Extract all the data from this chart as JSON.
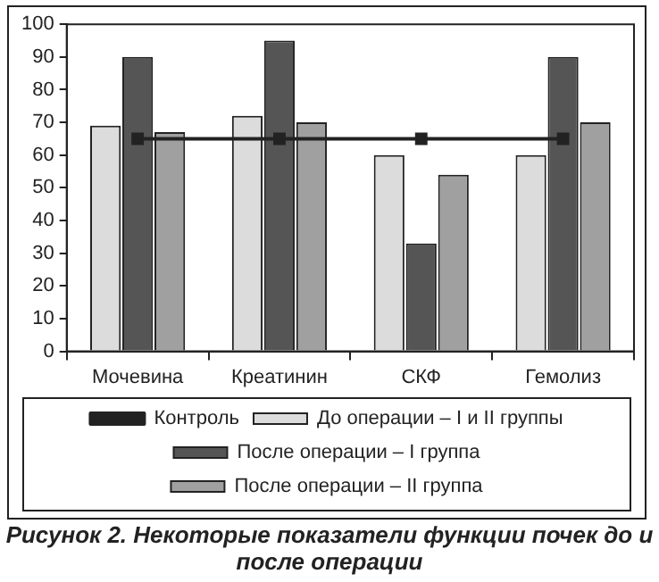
{
  "chart_data": {
    "type": "bar",
    "title": "Рисунок 2. Некоторые показатели функции почек до и после операции",
    "categories": [
      "Мочевина",
      "Креатинин",
      "СКФ",
      "Гемолиз"
    ],
    "series": [
      {
        "name": "До операции – I и II группы",
        "color": "#dcdcdc",
        "values": [
          69,
          72,
          60,
          60
        ]
      },
      {
        "name": "После операции – I группа",
        "color": "#555555",
        "values": [
          90,
          95,
          33,
          90
        ]
      },
      {
        "name": "После операции – II группа",
        "color": "#a0a0a0",
        "values": [
          67,
          70,
          54,
          70
        ]
      },
      {
        "name": "Контроль",
        "type": "line",
        "color": "#222222",
        "values": [
          65,
          65,
          65,
          65
        ],
        "marker": "square"
      }
    ],
    "ylim": [
      0,
      100
    ],
    "yticks": [
      0,
      10,
      20,
      30,
      40,
      50,
      60,
      70,
      80,
      90,
      100
    ],
    "grid": false,
    "legend": "bottom"
  }
}
